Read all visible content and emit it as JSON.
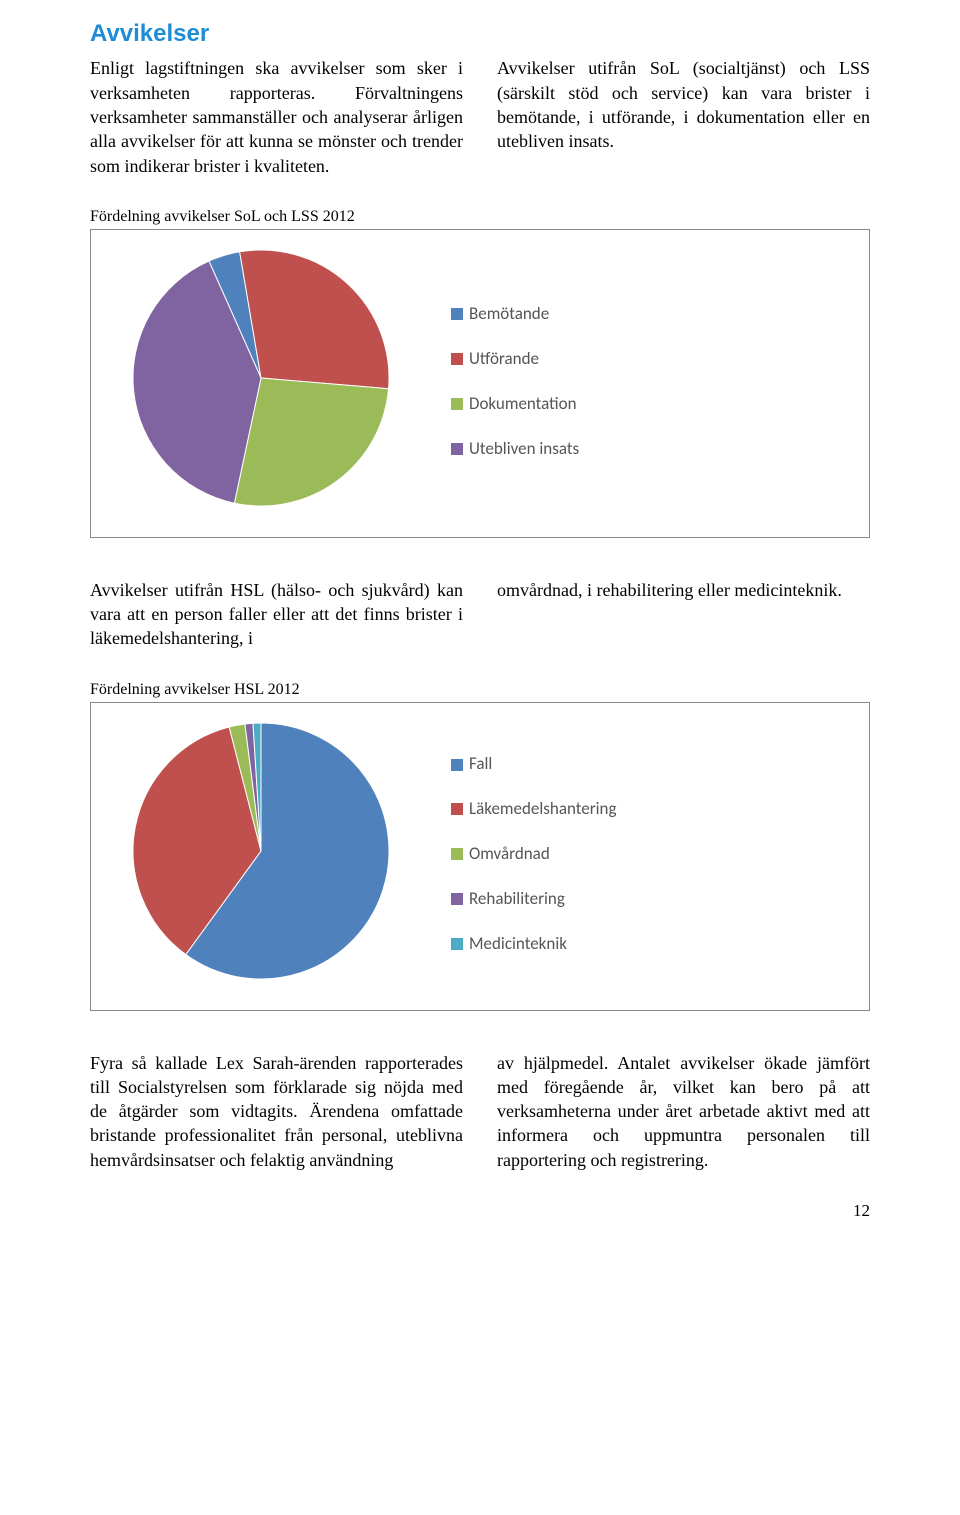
{
  "heading": "Avvikelser",
  "intro_left": "Enligt lagstiftningen ska avvikelser som sker i verksamheten rapporteras. Förvaltningens verksamheter sammanställer och analyserar årligen alla avvikelser för att kunna se mönster och trender som indikerar brister i kvaliteten.",
  "intro_right": "Avvikelser utifrån SoL (socialtjänst) och LSS (särskilt stöd och service) kan vara brister i bemötande, i utförande, i dokumentation eller en utebliven insats.",
  "chart1": {
    "type": "pie",
    "title": "Fördelning avvikelser SoL och LSS 2012",
    "size": 260,
    "background_color": "#ffffff",
    "border_color": "#888888",
    "legend_font": "Calibri",
    "legend_fontsize": 17,
    "slices": [
      {
        "label": "Bemötande",
        "value": 4,
        "color": "#4f81bd"
      },
      {
        "label": "Utförande",
        "value": 29,
        "color": "#c0504d"
      },
      {
        "label": "Dokumentation",
        "value": 27,
        "color": "#9bbb59"
      },
      {
        "label": "Utebliven insats",
        "value": 40,
        "color": "#8064a2"
      }
    ],
    "start_angle_deg": -114
  },
  "mid_left": "Avvikelser utifrån HSL (hälso- och sjukvård) kan vara att en person faller eller att det finns brister i läkemedelshantering, i",
  "mid_right": "omvårdnad, i rehabilitering eller medicinteknik.",
  "chart2": {
    "type": "pie",
    "title": "Fördelning avvikelser HSL 2012",
    "size": 260,
    "background_color": "#ffffff",
    "border_color": "#888888",
    "legend_font": "Calibri",
    "legend_fontsize": 17,
    "slices": [
      {
        "label": "Fall",
        "value": 60,
        "color": "#4f81bd"
      },
      {
        "label": "Läkemedelshantering",
        "value": 36,
        "color": "#c0504d"
      },
      {
        "label": "Omvårdnad",
        "value": 2,
        "color": "#9bbb59"
      },
      {
        "label": "Rehabilitering",
        "value": 1,
        "color": "#8064a2"
      },
      {
        "label": "Medicinteknik",
        "value": 1,
        "color": "#4bacc6"
      }
    ],
    "start_angle_deg": -90
  },
  "outro_left": "Fyra så kallade Lex Sarah-ärenden rapporterades till Socialstyrelsen som förklarade sig nöjda med de åtgärder som vidtagits. Ärendena omfattade bristande professionalitet från personal, uteblivna hemvårdsinsatser och felaktig användning",
  "outro_right": "av hjälpmedel. Antalet avvikelser ökade jämfört med föregående år, vilket kan bero på att verksamheterna under året arbetade aktivt med att informera och uppmuntra personalen till rapportering och registrering.",
  "page_number": "12"
}
